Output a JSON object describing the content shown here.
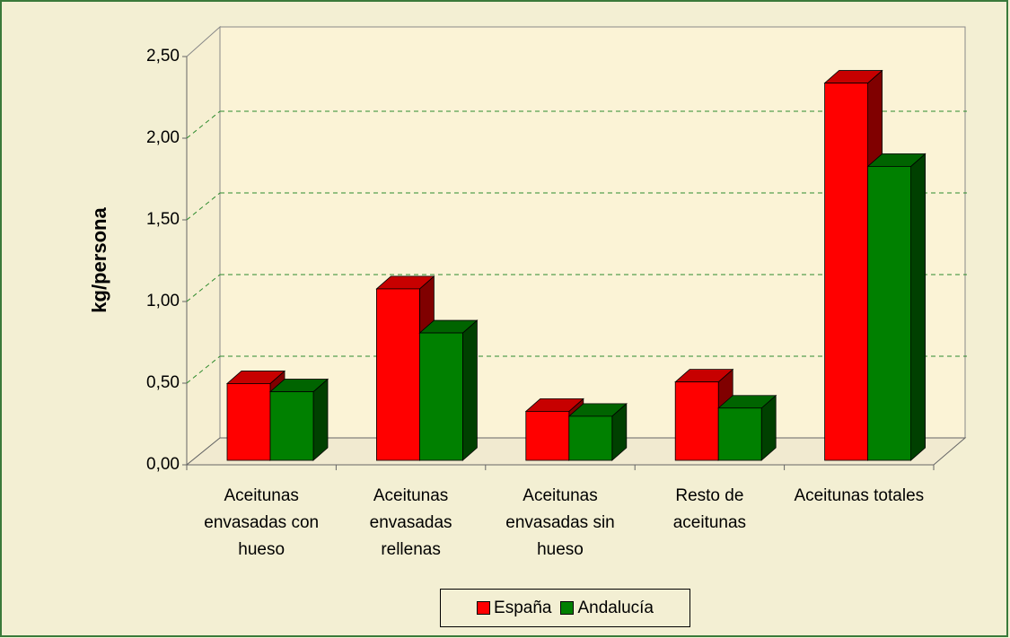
{
  "chart_data": {
    "type": "bar3d",
    "y_label": "kg/persona",
    "categories": [
      "Aceitunas envasadas con hueso",
      "Aceitunas envasadas rellenas",
      "Aceitunas envasadas sin hueso",
      "Resto de aceitunas",
      "Aceitunas totales"
    ],
    "series": [
      {
        "name": "España",
        "color": "#ff0000",
        "values": [
          0.47,
          1.05,
          0.3,
          0.48,
          2.31
        ]
      },
      {
        "name": "Andalucía",
        "color": "#008000",
        "values": [
          0.42,
          0.78,
          0.27,
          0.32,
          1.8
        ]
      }
    ],
    "ylim": [
      0,
      2.5
    ],
    "yticks": [
      {
        "value": 0,
        "label": "0,00"
      },
      {
        "value": 0.5,
        "label": "0,50"
      },
      {
        "value": 1,
        "label": "1,00"
      },
      {
        "value": 1.5,
        "label": "1,50"
      },
      {
        "value": 2,
        "label": "2,00"
      },
      {
        "value": 2.5,
        "label": "2,50"
      }
    ],
    "grid": true,
    "legend": "bottom"
  }
}
